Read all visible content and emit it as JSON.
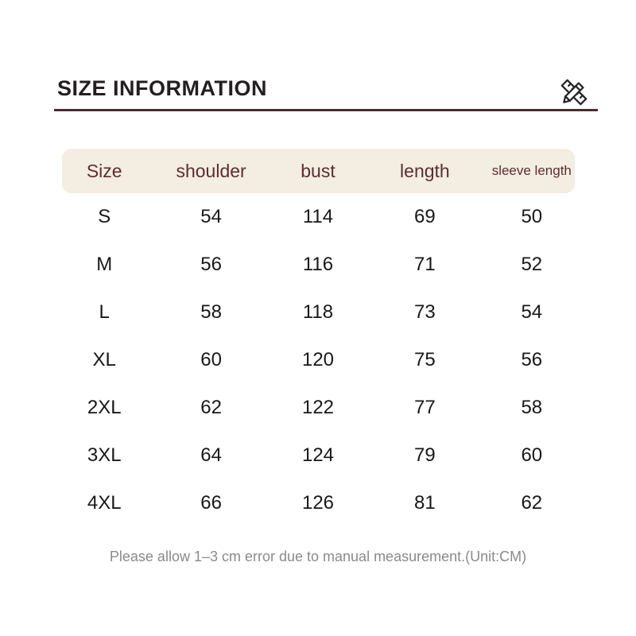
{
  "header": {
    "title": "SIZE INFORMATION",
    "icon": "pencil-ruler"
  },
  "table": {
    "columns": [
      {
        "label": "Size",
        "small": false
      },
      {
        "label": "shoulder",
        "small": false
      },
      {
        "label": "bust",
        "small": false
      },
      {
        "label": "length",
        "small": false
      },
      {
        "label": "sleeve length",
        "small": true
      }
    ],
    "rows": [
      [
        "S",
        "54",
        "114",
        "69",
        "50"
      ],
      [
        "M",
        "56",
        "116",
        "71",
        "52"
      ],
      [
        "L",
        "58",
        "118",
        "73",
        "54"
      ],
      [
        "XL",
        "60",
        "120",
        "75",
        "56"
      ],
      [
        "2XL",
        "62",
        "122",
        "77",
        "58"
      ],
      [
        "3XL",
        "64",
        "124",
        "79",
        "60"
      ],
      [
        "4XL",
        "66",
        "126",
        "81",
        "62"
      ]
    ]
  },
  "footer": {
    "note": "Please allow 1–3 cm error due to manual measurement.(Unit:CM)"
  },
  "colors": {
    "accent_line": "#4e2a31",
    "header_bg": "#f3eee1",
    "header_text": "#5e2b34",
    "body_text": "#1a1718",
    "note_text": "#8a8a8a"
  },
  "chart_data": {
    "type": "table",
    "title": "SIZE INFORMATION",
    "columns": [
      "Size",
      "shoulder",
      "bust",
      "length",
      "sleeve length"
    ],
    "rows": [
      [
        "S",
        54,
        114,
        69,
        50
      ],
      [
        "M",
        56,
        116,
        71,
        52
      ],
      [
        "L",
        58,
        118,
        73,
        54
      ],
      [
        "XL",
        60,
        120,
        75,
        56
      ],
      [
        "2XL",
        62,
        122,
        77,
        58
      ],
      [
        "3XL",
        64,
        124,
        79,
        60
      ],
      [
        "4XL",
        66,
        126,
        81,
        62
      ]
    ],
    "unit": "CM",
    "note": "Please allow 1–3 cm error due to manual measurement.(Unit:CM)"
  }
}
